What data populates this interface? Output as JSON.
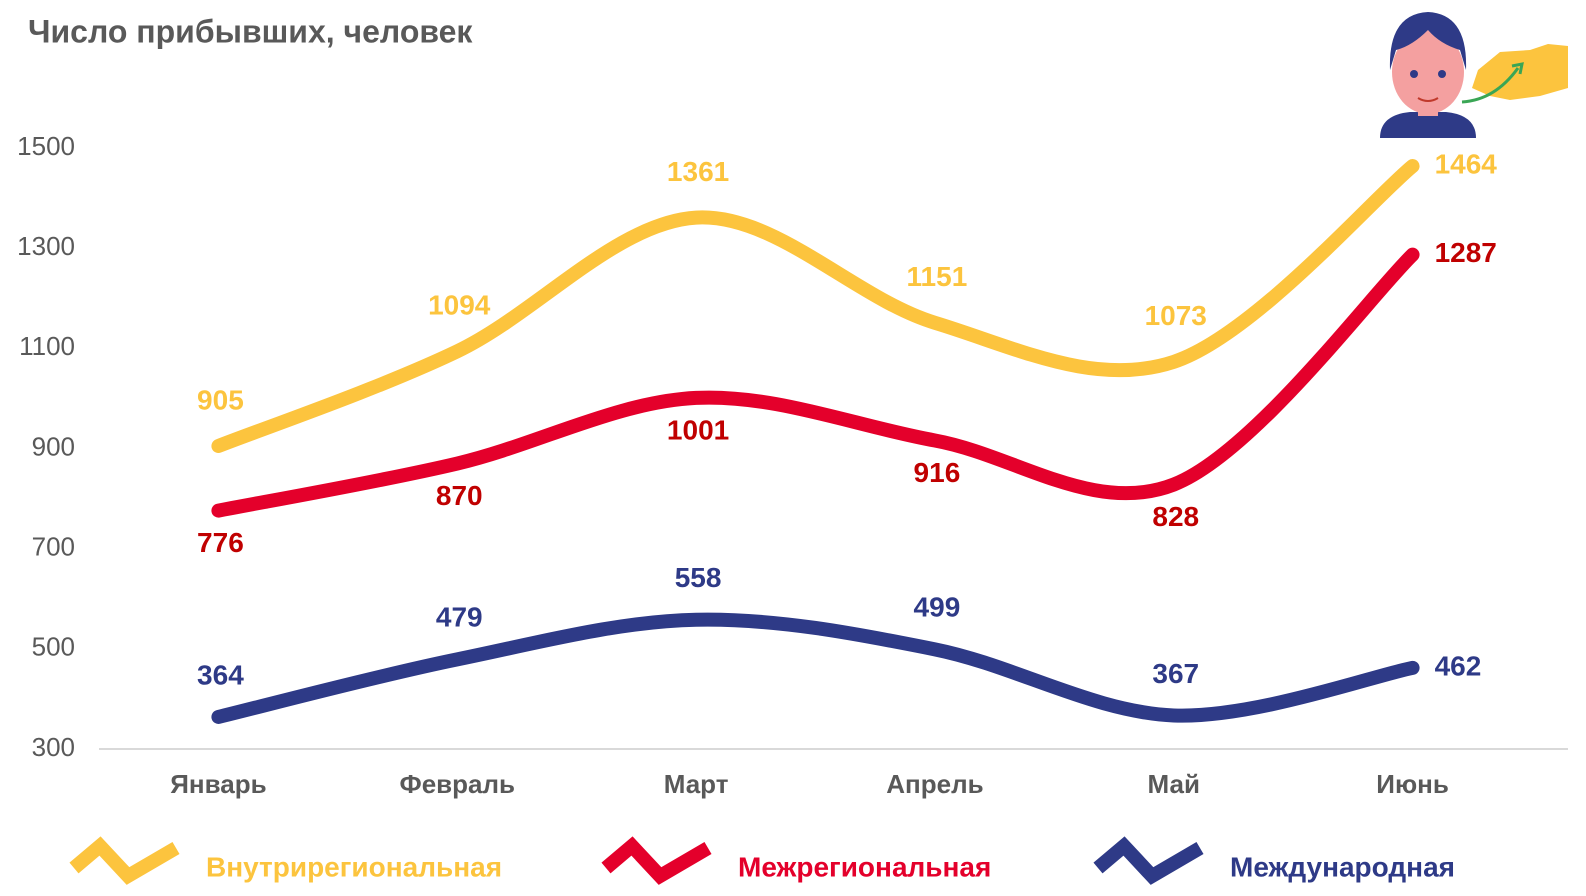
{
  "chart_data": {
    "type": "line",
    "title": "Число прибывших, человек",
    "categories": [
      "Январь",
      "Февраль",
      "Март",
      "Апрель",
      "Май",
      "Июнь"
    ],
    "series": [
      {
        "name": "Внутрирегиональная",
        "color": "#fcc43e",
        "values": [
          905,
          1094,
          1361,
          1151,
          1073,
          1464
        ]
      },
      {
        "name": "Межрегиональная",
        "color": "#e4002b",
        "values": [
          776,
          870,
          1001,
          916,
          828,
          1287
        ]
      },
      {
        "name": "Международная",
        "color": "#2e3a87",
        "values": [
          364,
          479,
          558,
          499,
          367,
          462
        ]
      }
    ],
    "ylim": [
      300,
      1500
    ],
    "yticks": [
      300,
      500,
      700,
      900,
      1100,
      1300,
      1500
    ],
    "grid": false,
    "legend": "bottom"
  }
}
